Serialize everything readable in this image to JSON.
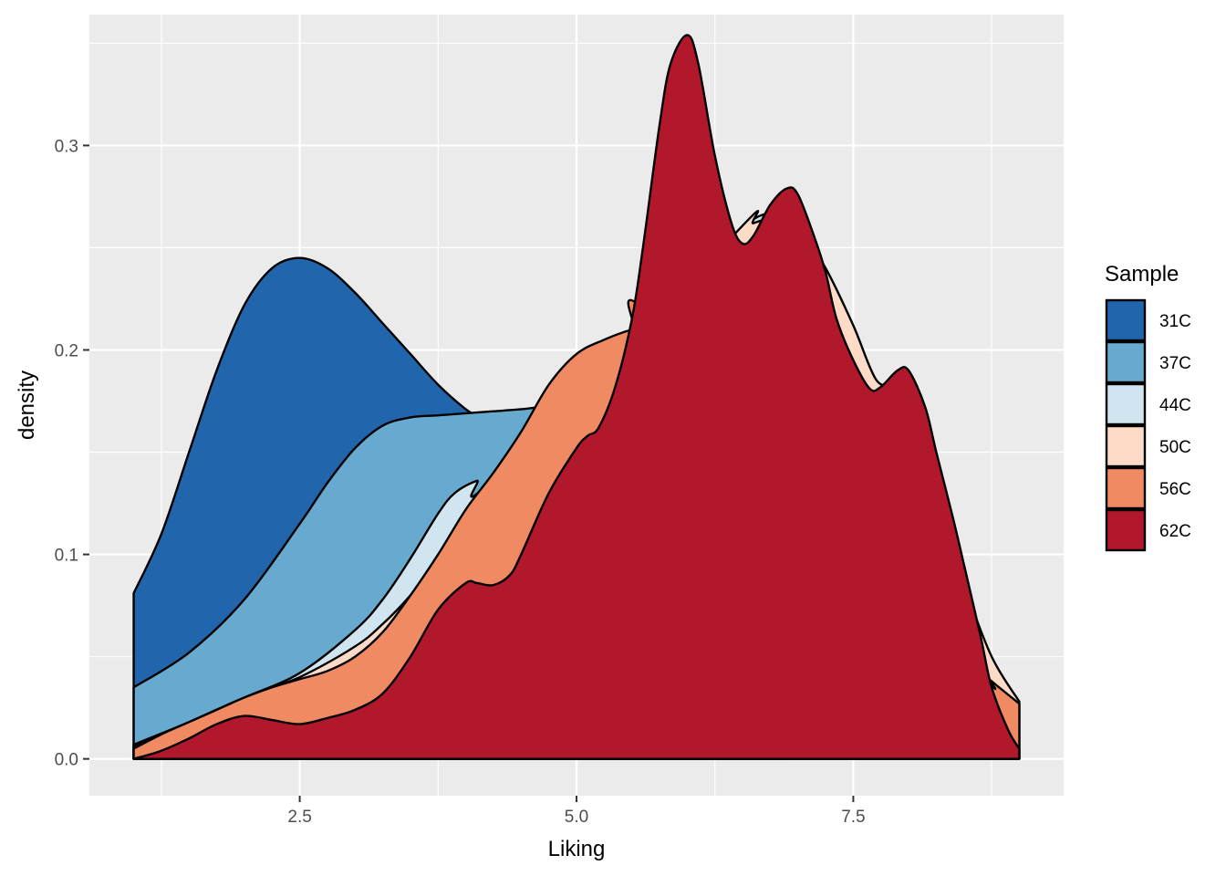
{
  "chart_data": {
    "type": "area",
    "subtype": "density",
    "xlabel": "Liking",
    "ylabel": "density",
    "xlim": [
      0.6,
      9.4
    ],
    "ylim": [
      -0.018,
      0.364
    ],
    "x_ticks": [
      2.5,
      5.0,
      7.5
    ],
    "x_tick_labels": [
      "2.5",
      "5.0",
      "7.5"
    ],
    "y_ticks": [
      0.0,
      0.1,
      0.2,
      0.3
    ],
    "y_tick_labels": [
      "0.0",
      "0.1",
      "0.2",
      "0.3"
    ],
    "grid": true,
    "background": "#ebebeb",
    "legend": {
      "title": "Sample",
      "placement": "right"
    },
    "series": [
      {
        "name": "31C",
        "color": "#2166ac",
        "x": [
          1.0,
          1.25,
          1.5,
          1.75,
          2.0,
          2.25,
          2.5,
          2.75,
          3.0,
          3.25,
          3.5,
          3.75,
          4.0,
          4.1
        ],
        "y": [
          0.081,
          0.11,
          0.15,
          0.19,
          0.222,
          0.24,
          0.245,
          0.24,
          0.228,
          0.213,
          0.198,
          0.183,
          0.171,
          0.168
        ]
      },
      {
        "name": "37C",
        "color": "#67a9cf",
        "x": [
          1.0,
          1.5,
          2.0,
          2.5,
          2.75,
          3.0,
          3.25,
          3.5,
          3.75,
          4.0,
          4.25,
          4.5,
          4.65
        ],
        "y": [
          0.035,
          0.052,
          0.078,
          0.115,
          0.135,
          0.152,
          0.163,
          0.167,
          0.168,
          0.169,
          0.17,
          0.171,
          0.172
        ]
      },
      {
        "name": "44C",
        "color": "#d1e5f0",
        "x": [
          1.0,
          1.5,
          2.0,
          2.5,
          3.0,
          3.25,
          3.5,
          3.75,
          3.9,
          4.1,
          4.25,
          6.4,
          6.6,
          6.75,
          6.9
        ],
        "y": [
          0.007,
          0.018,
          0.03,
          0.042,
          0.063,
          0.078,
          0.098,
          0.12,
          0.13,
          0.136,
          0.137,
          0.255,
          0.264,
          0.267,
          0.267
        ]
      },
      {
        "name": "50C",
        "color": "#fddbc7",
        "x": [
          1.0,
          1.5,
          2.0,
          2.5,
          3.0,
          3.25,
          3.5,
          3.75,
          4.0,
          6.4,
          6.6,
          6.8,
          7.0,
          7.25,
          7.5,
          7.7,
          7.9,
          8.2,
          8.5,
          8.75,
          9.0
        ],
        "y": [
          0.006,
          0.018,
          0.03,
          0.04,
          0.055,
          0.066,
          0.08,
          0.097,
          0.11,
          0.255,
          0.262,
          0.264,
          0.26,
          0.24,
          0.212,
          0.186,
          0.176,
          0.13,
          0.085,
          0.05,
          0.028
        ]
      },
      {
        "name": "56C",
        "color": "#ef8a62",
        "x": [
          1.0,
          1.25,
          1.5,
          1.75,
          2.0,
          2.25,
          2.5,
          2.75,
          3.0,
          3.25,
          3.5,
          3.75,
          4.0,
          4.25,
          4.5,
          4.75,
          5.0,
          5.25,
          5.5,
          5.75,
          8.5,
          8.75,
          9.0
        ],
        "y": [
          0.005,
          0.012,
          0.018,
          0.024,
          0.03,
          0.035,
          0.039,
          0.043,
          0.05,
          0.062,
          0.08,
          0.1,
          0.122,
          0.14,
          0.16,
          0.183,
          0.198,
          0.205,
          0.21,
          0.213,
          0.05,
          0.038,
          0.027
        ]
      },
      {
        "name": "62C",
        "color": "#b2182b",
        "x": [
          1.0,
          1.25,
          1.5,
          1.75,
          2.0,
          2.25,
          2.5,
          2.75,
          3.0,
          3.25,
          3.5,
          3.75,
          4.0,
          4.1,
          4.25,
          4.4,
          4.5,
          4.75,
          5.0,
          5.1,
          5.2,
          5.35,
          5.5,
          5.6,
          5.75,
          5.85,
          6.0,
          6.1,
          6.25,
          6.4,
          6.5,
          6.6,
          6.75,
          6.9,
          7.0,
          7.15,
          7.25,
          7.35,
          7.5,
          7.65,
          7.75,
          7.9,
          8.0,
          8.15,
          8.25,
          8.4,
          8.5,
          8.65,
          8.75,
          8.9,
          9.0
        ],
        "y": [
          0.0,
          0.004,
          0.01,
          0.017,
          0.021,
          0.019,
          0.017,
          0.02,
          0.024,
          0.032,
          0.05,
          0.073,
          0.086,
          0.086,
          0.085,
          0.09,
          0.1,
          0.13,
          0.152,
          0.158,
          0.162,
          0.182,
          0.215,
          0.25,
          0.31,
          0.34,
          0.354,
          0.34,
          0.295,
          0.262,
          0.252,
          0.256,
          0.271,
          0.279,
          0.276,
          0.255,
          0.238,
          0.215,
          0.195,
          0.181,
          0.182,
          0.19,
          0.19,
          0.172,
          0.15,
          0.118,
          0.095,
          0.06,
          0.035,
          0.014,
          0.005
        ]
      }
    ]
  }
}
